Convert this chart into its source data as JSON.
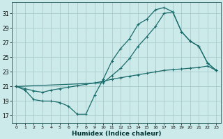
{
  "xlabel": "Humidex (Indice chaleur)",
  "bg_color": "#cdeaea",
  "grid_color": "#aacccc",
  "line_color": "#1a6b6b",
  "xlim": [
    -0.5,
    23.5
  ],
  "ylim": [
    16.0,
    32.5
  ],
  "yticks": [
    17,
    19,
    21,
    23,
    25,
    27,
    29,
    31
  ],
  "xticks": [
    0,
    1,
    2,
    3,
    4,
    5,
    6,
    7,
    8,
    9,
    10,
    11,
    12,
    13,
    14,
    15,
    16,
    17,
    18,
    19,
    20,
    21,
    22,
    23
  ],
  "curve1_x": [
    0,
    1,
    2,
    3,
    4,
    5,
    6,
    7,
    8,
    9,
    10,
    11,
    12,
    13,
    14,
    15,
    16,
    17,
    18,
    19,
    20,
    21,
    22,
    23
  ],
  "curve1_y": [
    21.0,
    20.5,
    19.2,
    19.0,
    19.0,
    18.8,
    18.3,
    17.2,
    17.2,
    19.8,
    22.0,
    24.5,
    26.2,
    27.5,
    29.5,
    30.2,
    31.5,
    31.8,
    31.2,
    28.5,
    27.2,
    26.5,
    24.2,
    23.2
  ],
  "curve2_x": [
    0,
    10,
    11,
    12,
    13,
    14,
    15,
    16,
    17,
    18,
    19,
    20,
    21,
    22,
    23
  ],
  "curve2_y": [
    21.0,
    21.5,
    22.5,
    23.5,
    24.8,
    26.5,
    27.8,
    29.2,
    31.0,
    31.2,
    28.5,
    27.2,
    26.5,
    24.2,
    23.2
  ],
  "curve3_x": [
    0,
    1,
    2,
    3,
    4,
    5,
    6,
    7,
    8,
    9,
    10,
    11,
    12,
    13,
    14,
    15,
    16,
    17,
    18,
    19,
    20,
    21,
    22,
    23
  ],
  "curve3_y": [
    21.0,
    20.7,
    20.4,
    20.2,
    20.5,
    20.7,
    20.9,
    21.1,
    21.3,
    21.5,
    21.7,
    22.0,
    22.2,
    22.4,
    22.6,
    22.8,
    23.0,
    23.2,
    23.3,
    23.4,
    23.5,
    23.6,
    23.8,
    23.2
  ]
}
